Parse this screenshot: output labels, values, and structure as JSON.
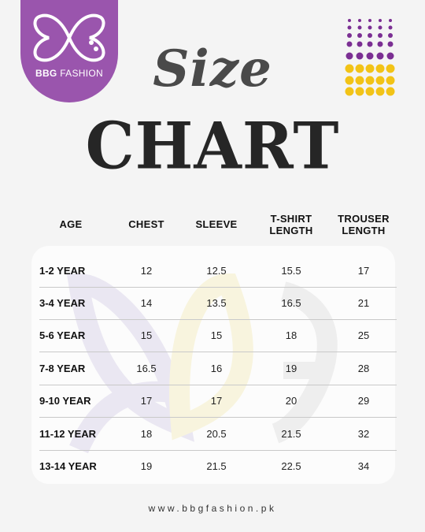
{
  "brand": {
    "name": "BBG",
    "suffix": "FASHION",
    "color": "#9a55ad"
  },
  "title": {
    "line1": "Size",
    "line2": "CHART"
  },
  "headers": {
    "age": "AGE",
    "chest": "CHEST",
    "sleeve": "SLEEVE",
    "tshirt_1": "T-SHIRT",
    "tshirt_2": "LENGTH",
    "trouser_1": "TROUSER",
    "trouser_2": "LENGTH"
  },
  "rows": [
    {
      "age": "1-2 YEAR",
      "chest": "12",
      "sleeve": "12.5",
      "tshirt": "15.5",
      "trouser": "17"
    },
    {
      "age": "3-4 YEAR",
      "chest": "14",
      "sleeve": "13.5",
      "tshirt": "16.5",
      "trouser": "21"
    },
    {
      "age": "5-6 YEAR",
      "chest": "15",
      "sleeve": "15",
      "tshirt": "18",
      "trouser": "25"
    },
    {
      "age": "7-8 YEAR",
      "chest": "16.5",
      "sleeve": "16",
      "tshirt": "19",
      "trouser": "28"
    },
    {
      "age": "9-10 YEAR",
      "chest": "17",
      "sleeve": "17",
      "tshirt": "20",
      "trouser": "29"
    },
    {
      "age": "11-12 YEAR",
      "chest": "18",
      "sleeve": "20.5",
      "tshirt": "21.5",
      "trouser": "32"
    },
    {
      "age": "13-14 YEAR",
      "chest": "19",
      "sleeve": "21.5",
      "tshirt": "22.5",
      "trouser": "34"
    }
  ],
  "footer": {
    "url": "www.bbgfashion.pk"
  },
  "colors": {
    "purple": "#7b2f93",
    "yellow": "#f2c316",
    "text": "#111111"
  }
}
